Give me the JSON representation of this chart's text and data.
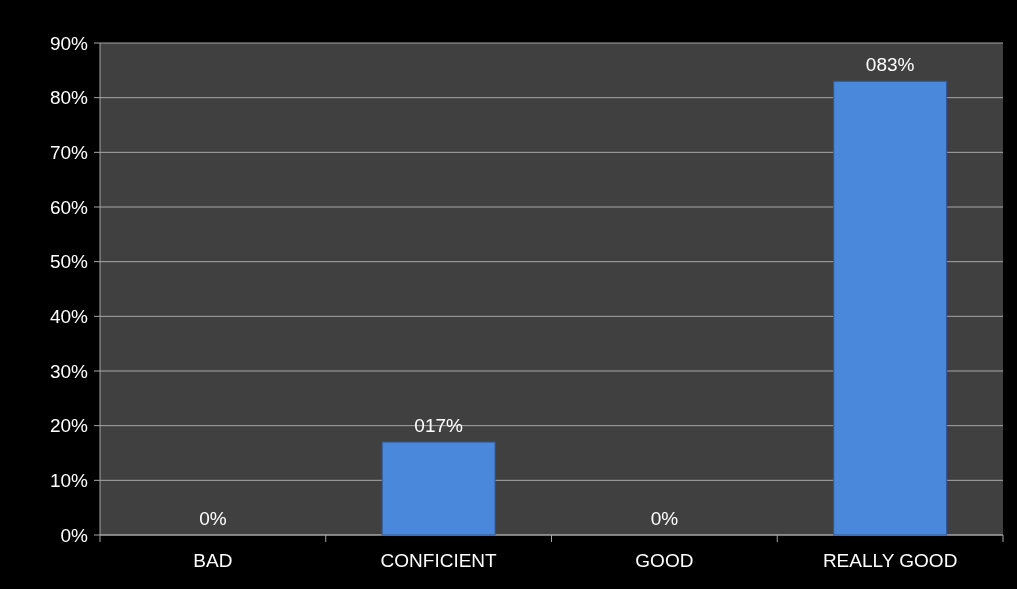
{
  "chart_data": {
    "type": "bar",
    "categories": [
      "BAD",
      "CONFICIENT",
      "GOOD",
      "REALLY GOOD"
    ],
    "values": [
      0,
      17,
      0,
      83
    ],
    "color": "#4a88dc",
    "value_labels": [
      "0%",
      "017%",
      "0%",
      "083%"
    ],
    "ylim": [
      0,
      90
    ],
    "yticks": [
      {
        "value": 0,
        "label": "0%"
      },
      {
        "value": 10,
        "label": "10%"
      },
      {
        "value": 20,
        "label": "20%"
      },
      {
        "value": 30,
        "label": "30%"
      },
      {
        "value": 40,
        "label": "40%"
      },
      {
        "value": 50,
        "label": "50%"
      },
      {
        "value": 60,
        "label": "60%"
      },
      {
        "value": 70,
        "label": "70%"
      },
      {
        "value": 80,
        "label": "80%"
      },
      {
        "value": 90,
        "label": "90%"
      }
    ],
    "grid": "y"
  }
}
